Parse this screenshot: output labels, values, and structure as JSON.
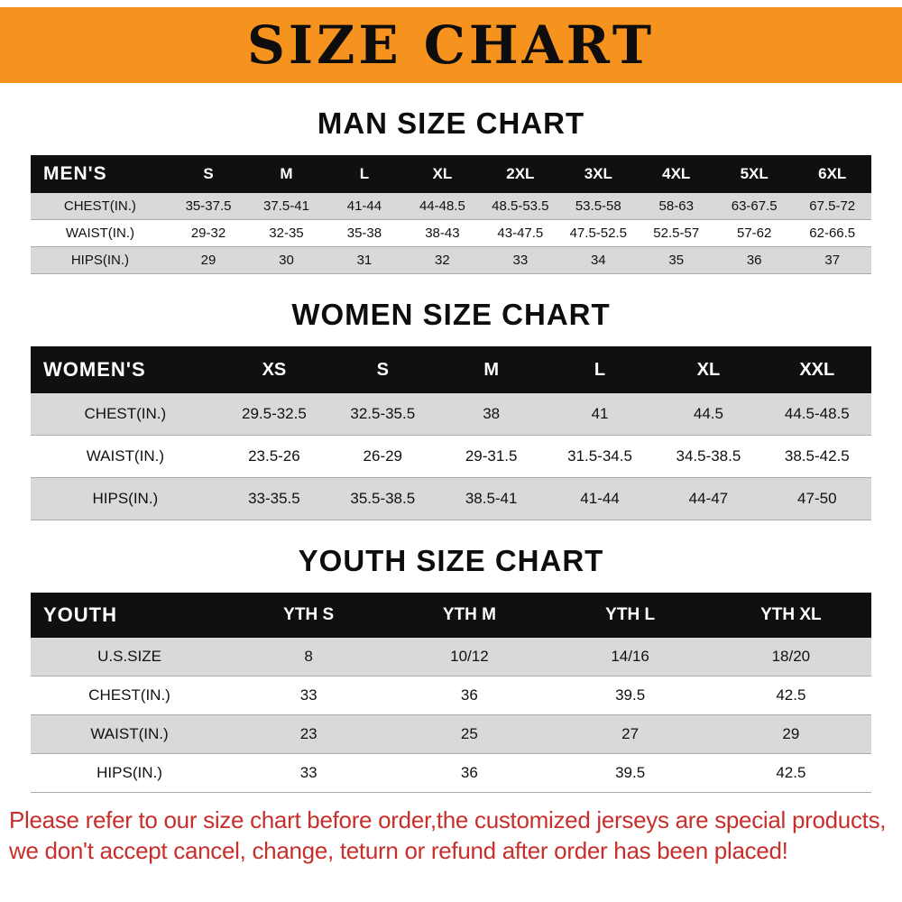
{
  "banner": {
    "title": "SIZE CHART"
  },
  "colors": {
    "banner_bg": "#f6921e",
    "table_header_bg": "#101010",
    "row_shade": "#d9d9d9",
    "notice_red": "#c62f2b"
  },
  "sections": [
    {
      "heading": "MAN SIZE CHART",
      "table": {
        "header_label": "MEN'S",
        "columns": [
          "S",
          "M",
          "L",
          "XL",
          "2XL",
          "3XL",
          "4XL",
          "5XL",
          "6XL"
        ],
        "rows": [
          {
            "label": "CHEST(IN.)",
            "values": [
              "35-37.5",
              "37.5-41",
              "41-44",
              "44-48.5",
              "48.5-53.5",
              "53.5-58",
              "58-63",
              "63-67.5",
              "67.5-72"
            ]
          },
          {
            "label": "WAIST(IN.)",
            "values": [
              "29-32",
              "32-35",
              "35-38",
              "38-43",
              "43-47.5",
              "47.5-52.5",
              "52.5-57",
              "57-62",
              "62-66.5"
            ]
          },
          {
            "label": "HIPS(IN.)",
            "values": [
              "29",
              "30",
              "31",
              "32",
              "33",
              "34",
              "35",
              "36",
              "37"
            ]
          }
        ]
      }
    },
    {
      "heading": "WOMEN SIZE CHART",
      "table": {
        "header_label": "WOMEN'S",
        "columns": [
          "XS",
          "S",
          "M",
          "L",
          "XL",
          "XXL"
        ],
        "rows": [
          {
            "label": "CHEST(IN.)",
            "values": [
              "29.5-32.5",
              "32.5-35.5",
              "38",
              "41",
              "44.5",
              "44.5-48.5"
            ]
          },
          {
            "label": "WAIST(IN.)",
            "values": [
              "23.5-26",
              "26-29",
              "29-31.5",
              "31.5-34.5",
              "34.5-38.5",
              "38.5-42.5"
            ]
          },
          {
            "label": "HIPS(IN.)",
            "values": [
              "33-35.5",
              "35.5-38.5",
              "38.5-41",
              "41-44",
              "44-47",
              "47-50"
            ]
          }
        ]
      }
    },
    {
      "heading": "YOUTH SIZE CHART",
      "table": {
        "header_label": "YOUTH",
        "columns": [
          "YTH S",
          "YTH M",
          "YTH L",
          "YTH XL"
        ],
        "rows": [
          {
            "label": "U.S.SIZE",
            "values": [
              "8",
              "10/12",
              "14/16",
              "18/20"
            ]
          },
          {
            "label": "CHEST(IN.)",
            "values": [
              "33",
              "36",
              "39.5",
              "42.5"
            ]
          },
          {
            "label": "WAIST(IN.)",
            "values": [
              "23",
              "25",
              "27",
              "29"
            ]
          },
          {
            "label": "HIPS(IN.)",
            "values": [
              "33",
              "36",
              "39.5",
              "42.5"
            ]
          }
        ]
      }
    }
  ],
  "footer": {
    "line1": "Please refer to our size chart before order,the customized jerseys are special products,",
    "line2": "we don't accept cancel, change, teturn or refund after order has been placed!"
  }
}
